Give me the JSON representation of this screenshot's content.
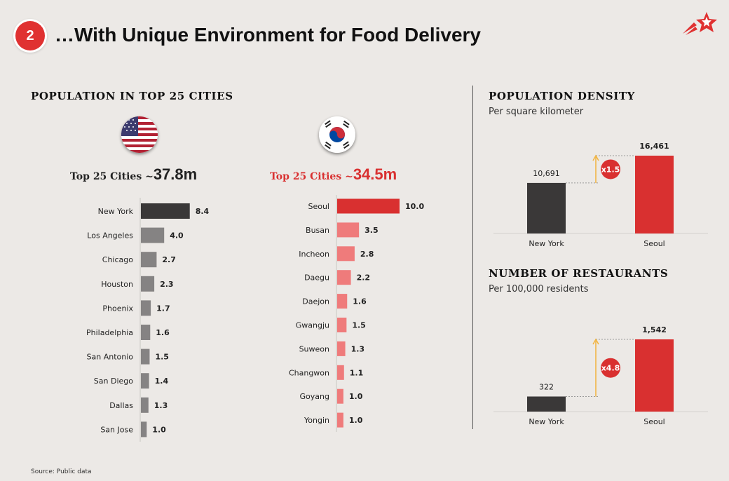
{
  "slide": {
    "number": "2",
    "title": "…With Unique Environment for Food Delivery",
    "source": "Source:  Public data"
  },
  "colors": {
    "red": "#d93030",
    "red_light": "#ef7b7b",
    "dark": "#3a3838",
    "grey": "#858383",
    "arrow": "#f2b33d"
  },
  "population": {
    "title": "POPULATION IN TOP 25 CITIES",
    "us": {
      "flag_icon": "us-flag-icon",
      "label": "Top 25 Cities ",
      "approx": "~",
      "total": "37.8m"
    },
    "kr": {
      "flag_icon": "korea-flag-icon",
      "label": "Top 25 Cities ",
      "approx": "~",
      "total": "34.5m"
    }
  },
  "density": {
    "title": "POPULATION DENSITY",
    "subtitle": "Per square kilometer"
  },
  "restaurants": {
    "title": "NUMBER OF RESTAURANTS",
    "subtitle": "Per 100,000 residents"
  },
  "chart_data": [
    {
      "id": "us-cities",
      "type": "bar",
      "orientation": "horizontal",
      "categories": [
        "New York",
        "Los Angeles",
        "Chicago",
        "Houston",
        "Phoenix",
        "Philadelphia",
        "San Antonio",
        "San Diego",
        "Dallas",
        "San Jose"
      ],
      "values": [
        8.4,
        4.0,
        2.7,
        2.3,
        1.7,
        1.6,
        1.5,
        1.4,
        1.3,
        1.0
      ],
      "labels": [
        "8.4",
        "4.0",
        "2.7",
        "2.3",
        "1.7",
        "1.6",
        "1.5",
        "1.4",
        "1.3",
        "1.0"
      ],
      "unit": "m",
      "xlim": [
        0,
        10
      ]
    },
    {
      "id": "kr-cities",
      "type": "bar",
      "orientation": "horizontal",
      "categories": [
        "Seoul",
        "Busan",
        "Incheon",
        "Daegu",
        "Daejon",
        "Gwangju",
        "Suweon",
        "Changwon",
        "Goyang",
        "Yongin"
      ],
      "values": [
        10.0,
        3.5,
        2.8,
        2.2,
        1.6,
        1.5,
        1.3,
        1.1,
        1.0,
        1.0
      ],
      "labels": [
        "10.0",
        "3.5",
        "2.8",
        "2.2",
        "1.6",
        "1.5",
        "1.3",
        "1.1",
        "1.0",
        "1.0"
      ],
      "unit": "m",
      "xlim": [
        0,
        10
      ]
    },
    {
      "id": "density",
      "type": "bar",
      "title": "POPULATION DENSITY",
      "categories": [
        "New York",
        "Seoul"
      ],
      "values": [
        10691,
        16461
      ],
      "labels": [
        "10,691",
        "16,461"
      ],
      "multiplier": "x1.5",
      "ylim": [
        0,
        16461
      ]
    },
    {
      "id": "restaurants",
      "type": "bar",
      "title": "NUMBER OF RESTAURANTS",
      "categories": [
        "New York",
        "Seoul"
      ],
      "values": [
        322,
        1542
      ],
      "labels": [
        "322",
        "1,542"
      ],
      "multiplier": "x4.8",
      "ylim": [
        0,
        1542
      ]
    }
  ]
}
